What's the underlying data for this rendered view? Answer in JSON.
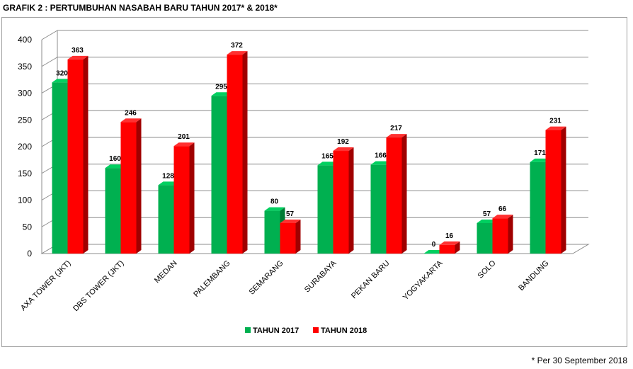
{
  "title": "GRAFIK 2 : PERTUMBUHAN NASABAH BARU TAHUN 2017* & 2018*",
  "footnote": "* Per 30 September 2018",
  "colors": {
    "s2017_front": "#00b050",
    "s2017_side": "#007a33",
    "s2017_top": "#00d060",
    "s2018_front": "#ff0000",
    "s2018_side": "#a00000",
    "s2018_top": "#ff3030",
    "grid": "#8c8c8c"
  },
  "chart_data": {
    "type": "bar",
    "title": "GRAFIK 2 : PERTUMBUHAN NASABAH BARU TAHUN 2017* & 2018*",
    "xlabel": "",
    "ylabel": "",
    "ylim": [
      0,
      400
    ],
    "yticks": [
      0,
      50,
      100,
      150,
      200,
      250,
      300,
      350,
      400
    ],
    "grid": true,
    "legend": "bottom-center",
    "categories": [
      "AXA TOWER (JKT)",
      "DBS TOWER (JKT)",
      "MEDAN",
      "PALEMBANG",
      "SEMARANG",
      "SURABAYA",
      "PEKAN BARU",
      "YOGYAKARTA",
      "SOLO",
      "BANDUNG"
    ],
    "series": [
      {
        "name": "TAHUN 2017",
        "values": [
          320,
          160,
          128,
          295,
          80,
          165,
          166,
          0,
          57,
          171
        ]
      },
      {
        "name": "TAHUN 2018",
        "values": [
          363,
          246,
          201,
          372,
          57,
          192,
          217,
          16,
          66,
          231
        ]
      }
    ]
  }
}
